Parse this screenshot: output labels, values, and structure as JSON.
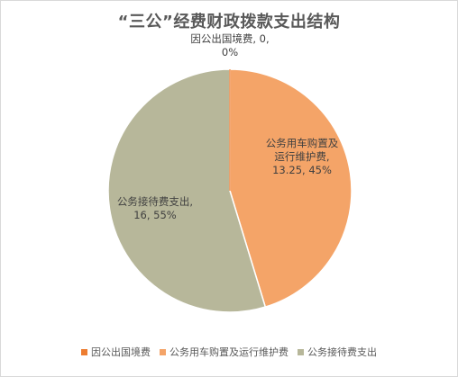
{
  "chart_data": {
    "type": "pie",
    "title": "“三公”经费财政拨款支出结构",
    "slices": [
      {
        "name": "因公出国境费",
        "value": 0,
        "percent": "0%",
        "color": "#ED7D31",
        "label_lines": [
          "因公出国境费, 0,",
          "0%"
        ]
      },
      {
        "name": "公务用车购置及运行维护费",
        "value": 13.25,
        "percent": "45%",
        "color": "#F4A468",
        "label_lines": [
          "公务用车购置及",
          "运行维护费,",
          "13.25, 45%"
        ]
      },
      {
        "name": "公务接待费支出",
        "value": 16,
        "percent": "55%",
        "color": "#B7B79A",
        "label_lines": [
          "公务接待费支出,",
          "16, 55%"
        ]
      }
    ],
    "legend": {
      "position": "bottom"
    }
  }
}
